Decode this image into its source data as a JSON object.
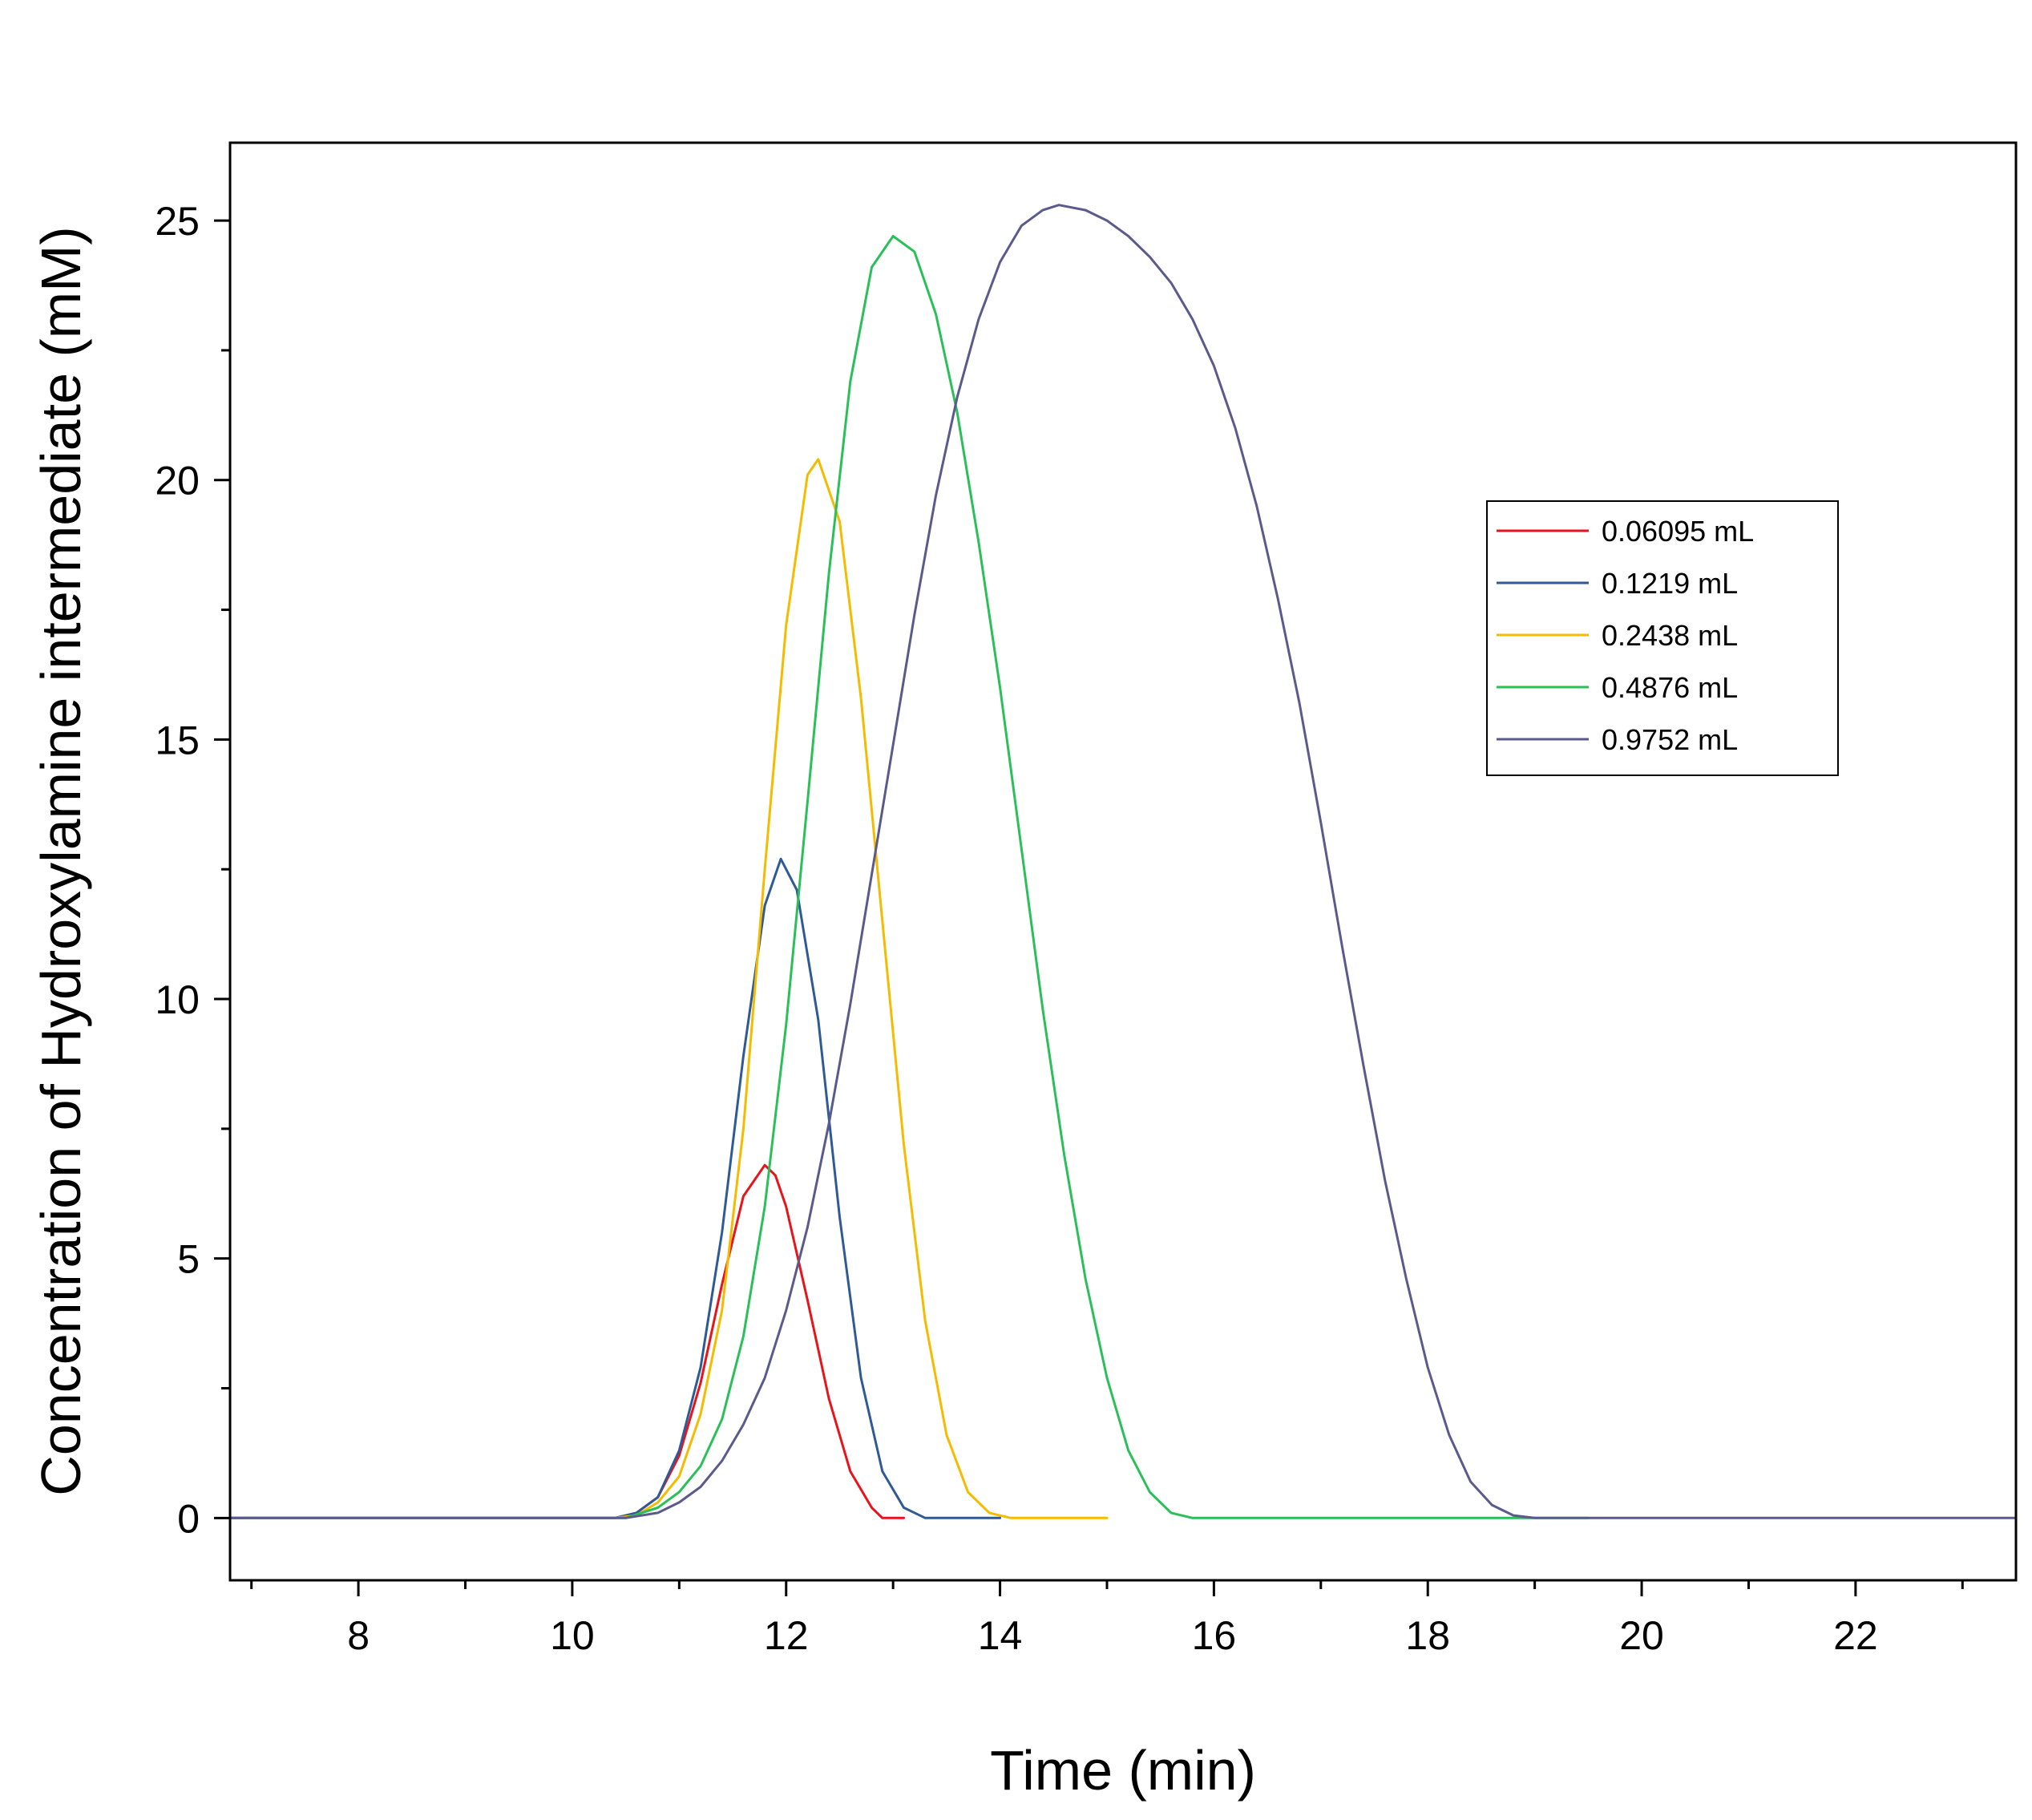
{
  "chart_data": {
    "type": "line",
    "title": "",
    "xlabel": "Time (min)",
    "ylabel": "Concentration of Hydroxylamine intermediate (mM)",
    "xlim": [
      6.8,
      23.5
    ],
    "ylim": [
      -1.2,
      26.5
    ],
    "xticks": [
      8,
      10,
      12,
      14,
      16,
      18,
      20,
      22
    ],
    "yticks": [
      0,
      5,
      10,
      15,
      20,
      25
    ],
    "legend_position": "right-middle",
    "series": [
      {
        "name": "0.06095 mL",
        "color": "#e8141c",
        "x": [
          6.8,
          10.4,
          10.6,
          10.8,
          11.0,
          11.2,
          11.4,
          11.6,
          11.8,
          11.9,
          12.0,
          12.2,
          12.4,
          12.6,
          12.8,
          12.9,
          13.1
        ],
        "y": [
          0,
          0,
          0.1,
          0.4,
          1.2,
          2.6,
          4.5,
          6.2,
          6.8,
          6.6,
          6.0,
          4.2,
          2.3,
          0.9,
          0.2,
          0,
          0
        ]
      },
      {
        "name": "0.1219 mL",
        "color": "#2e5a96",
        "x": [
          6.8,
          10.4,
          10.6,
          10.8,
          11.0,
          11.2,
          11.4,
          11.6,
          11.8,
          11.95,
          12.1,
          12.3,
          12.5,
          12.7,
          12.9,
          13.1,
          13.3,
          14.0
        ],
        "y": [
          0,
          0,
          0.1,
          0.4,
          1.3,
          2.9,
          5.5,
          8.9,
          11.8,
          12.7,
          12.1,
          9.6,
          5.8,
          2.7,
          0.9,
          0.2,
          0,
          0
        ]
      },
      {
        "name": "0.2438 mL",
        "color": "#f5bb00",
        "x": [
          6.8,
          10.4,
          10.6,
          10.8,
          11.0,
          11.2,
          11.4,
          11.6,
          11.8,
          12.0,
          12.2,
          12.3,
          12.5,
          12.7,
          12.9,
          13.1,
          13.3,
          13.5,
          13.7,
          13.9,
          14.1,
          15.0
        ],
        "y": [
          0,
          0,
          0.05,
          0.3,
          0.8,
          2.0,
          4.0,
          7.5,
          12.5,
          17.2,
          20.1,
          20.4,
          19.2,
          15.8,
          11.5,
          7.2,
          3.8,
          1.6,
          0.5,
          0.1,
          0,
          0
        ]
      },
      {
        "name": "0.4876 mL",
        "color": "#2bbf5a",
        "x": [
          6.8,
          10.5,
          10.8,
          11.0,
          11.2,
          11.4,
          11.6,
          11.8,
          12.0,
          12.2,
          12.4,
          12.6,
          12.8,
          13.0,
          13.2,
          13.4,
          13.6,
          13.8,
          14.0,
          14.2,
          14.4,
          14.6,
          14.8,
          15.0,
          15.2,
          15.4,
          15.6,
          15.8,
          19.5
        ],
        "y": [
          0,
          0,
          0.2,
          0.5,
          1.0,
          1.9,
          3.5,
          6.0,
          9.5,
          13.8,
          18.2,
          21.9,
          24.1,
          24.7,
          24.4,
          23.2,
          21.3,
          18.8,
          16.0,
          12.9,
          9.8,
          7.0,
          4.6,
          2.7,
          1.3,
          0.5,
          0.1,
          0,
          0
        ]
      },
      {
        "name": "0.9752 mL",
        "color": "#5a5a8c",
        "x": [
          6.8,
          10.5,
          10.8,
          11.0,
          11.2,
          11.4,
          11.6,
          11.8,
          12.0,
          12.2,
          12.4,
          12.6,
          12.8,
          13.0,
          13.2,
          13.4,
          13.6,
          13.8,
          14.0,
          14.2,
          14.4,
          14.55,
          14.8,
          15.0,
          15.2,
          15.4,
          15.6,
          15.8,
          16.0,
          16.2,
          16.4,
          16.6,
          16.8,
          17.0,
          17.2,
          17.4,
          17.6,
          17.8,
          18.0,
          18.2,
          18.4,
          18.6,
          18.8,
          19.0,
          19.2,
          23.5
        ],
        "y": [
          0,
          0,
          0.1,
          0.3,
          0.6,
          1.1,
          1.8,
          2.7,
          4.0,
          5.6,
          7.6,
          9.9,
          12.4,
          14.9,
          17.4,
          19.7,
          21.6,
          23.1,
          24.2,
          24.9,
          25.2,
          25.3,
          25.2,
          25.0,
          24.7,
          24.3,
          23.8,
          23.1,
          22.2,
          21.0,
          19.5,
          17.7,
          15.7,
          13.4,
          11.0,
          8.7,
          6.5,
          4.6,
          2.9,
          1.6,
          0.7,
          0.25,
          0.05,
          0,
          0,
          0
        ]
      }
    ]
  }
}
